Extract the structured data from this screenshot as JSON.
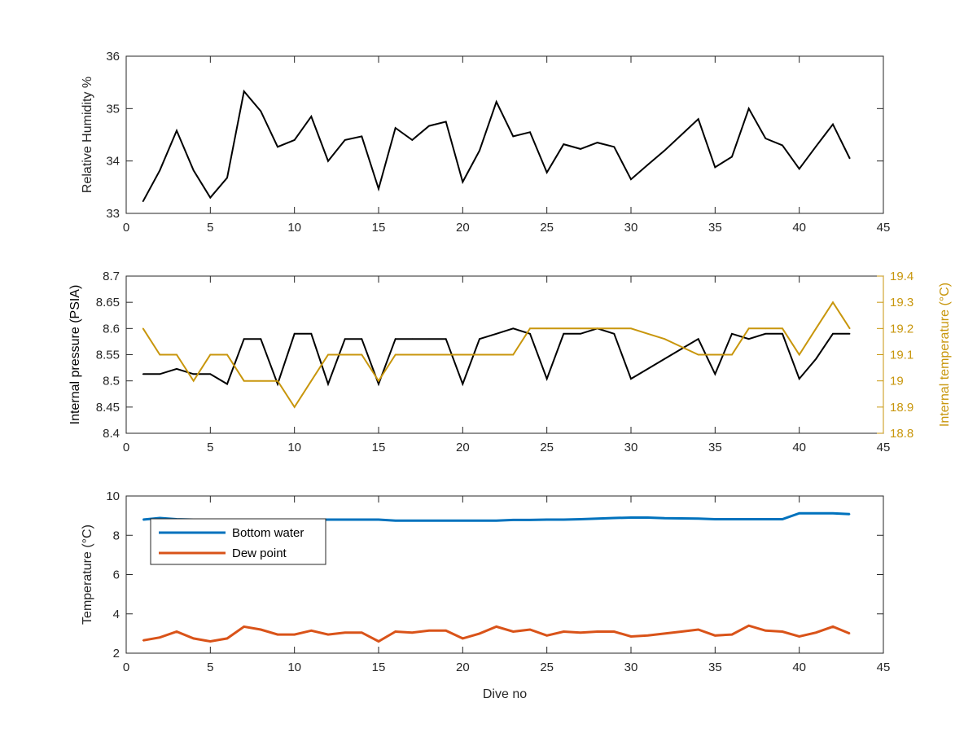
{
  "colors": {
    "axis": "#262626",
    "black_series": "#000000",
    "temperature_series": "#C8960C",
    "bottom_water": "#0072BD",
    "dew_point": "#D95319",
    "right_axis": "#C8960C"
  },
  "chart_data": [
    {
      "type": "line",
      "title": "",
      "xlabel": "",
      "ylabel": "Relative Humidity %",
      "xlim": [
        0,
        45
      ],
      "ylim": [
        33,
        36
      ],
      "xticks": [
        0,
        5,
        10,
        15,
        20,
        25,
        30,
        35,
        40,
        45
      ],
      "yticks": [
        33,
        34,
        35,
        36
      ],
      "x": [
        1,
        2,
        3,
        4,
        5,
        6,
        7,
        8,
        9,
        10,
        11,
        12,
        13,
        14,
        15,
        16,
        17,
        18,
        19,
        20,
        21,
        22,
        23,
        24,
        25,
        26,
        27,
        28,
        29,
        30,
        31,
        32,
        33,
        34,
        35,
        36,
        37,
        38,
        39,
        40,
        41,
        42,
        43
      ],
      "series": [
        {
          "values": [
            33.23,
            33.82,
            34.58,
            33.82,
            33.3,
            33.68,
            35.33,
            34.95,
            34.27,
            34.4,
            34.85,
            34.0,
            34.4,
            34.47,
            33.47,
            34.63,
            34.4,
            34.67,
            34.75,
            33.6,
            34.2,
            35.13,
            34.47,
            34.55,
            33.78,
            34.32,
            34.23,
            34.35,
            34.27,
            33.65,
            33.93,
            34.2,
            34.5,
            34.8,
            33.88,
            34.08,
            35.0,
            34.43,
            34.3,
            33.85,
            34.28,
            34.7,
            34.05
          ]
        }
      ]
    },
    {
      "type": "line",
      "title": "",
      "xlabel": "",
      "ylabel": "Internal pressure (PSIA)",
      "ylabel_right": "Internal temperature (°C)",
      "xlim": [
        0,
        45
      ],
      "ylim": [
        8.4,
        8.7
      ],
      "ylim_right": [
        18.8,
        19.4
      ],
      "xticks": [
        0,
        5,
        10,
        15,
        20,
        25,
        30,
        35,
        40,
        45
      ],
      "yticks": [
        8.4,
        8.45,
        8.5,
        8.55,
        8.6,
        8.65,
        8.7
      ],
      "ytick_labels": [
        "8.4",
        "8.45",
        "8.5",
        "8.55",
        "8.6",
        "8.65",
        "8.7"
      ],
      "yticks_right": [
        18.8,
        18.9,
        19.0,
        19.1,
        19.2,
        19.3,
        19.4
      ],
      "ytick_labels_right": [
        "18.8",
        "18.9",
        "19",
        "19.1",
        "19.2",
        "19.3",
        "19.4"
      ],
      "x": [
        1,
        2,
        3,
        4,
        5,
        6,
        7,
        8,
        9,
        10,
        11,
        12,
        13,
        14,
        15,
        16,
        17,
        18,
        19,
        20,
        21,
        22,
        23,
        24,
        25,
        26,
        27,
        28,
        29,
        30,
        31,
        32,
        33,
        34,
        35,
        36,
        37,
        38,
        39,
        40,
        41,
        42,
        43
      ],
      "series": [
        {
          "axis": "left",
          "values": [
            8.513,
            8.513,
            8.523,
            8.513,
            8.513,
            8.494,
            8.58,
            8.58,
            8.494,
            8.59,
            8.59,
            8.494,
            8.58,
            8.58,
            8.494,
            8.58,
            8.58,
            8.58,
            8.58,
            8.494,
            8.58,
            8.59,
            8.6,
            8.59,
            8.504,
            8.59,
            8.59,
            8.6,
            8.59,
            8.504,
            8.523,
            8.542,
            8.561,
            8.58,
            8.513,
            8.59,
            8.58,
            8.59,
            8.59,
            8.504,
            8.542,
            8.59,
            8.59
          ]
        },
        {
          "axis": "right",
          "values": [
            19.2,
            19.1,
            19.1,
            19.0,
            19.1,
            19.1,
            19.0,
            19.0,
            19.0,
            18.9,
            19.0,
            19.1,
            19.1,
            19.1,
            19.0,
            19.1,
            19.1,
            19.1,
            19.1,
            19.1,
            19.1,
            19.1,
            19.1,
            19.2,
            19.2,
            19.2,
            19.2,
            19.2,
            19.2,
            19.2,
            19.18,
            19.16,
            19.13,
            19.1,
            19.1,
            19.1,
            19.2,
            19.2,
            19.2,
            19.1,
            19.2,
            19.3,
            19.2
          ]
        }
      ]
    },
    {
      "type": "line",
      "title": "",
      "xlabel": "Dive no",
      "ylabel": "Temperature (°C)",
      "xlim": [
        0,
        45
      ],
      "ylim": [
        2,
        10
      ],
      "xticks": [
        0,
        5,
        10,
        15,
        20,
        25,
        30,
        35,
        40,
        45
      ],
      "yticks": [
        2,
        4,
        6,
        8,
        10
      ],
      "legend_position": "top-left",
      "x": [
        1,
        2,
        3,
        4,
        5,
        6,
        7,
        8,
        9,
        10,
        11,
        12,
        13,
        14,
        15,
        16,
        17,
        18,
        19,
        20,
        21,
        22,
        23,
        24,
        25,
        26,
        27,
        28,
        29,
        30,
        31,
        32,
        33,
        34,
        35,
        36,
        37,
        38,
        39,
        40,
        41,
        42,
        43
      ],
      "series": [
        {
          "name": "Bottom water",
          "values": [
            8.8,
            8.88,
            8.82,
            8.8,
            8.8,
            8.8,
            8.8,
            8.8,
            8.8,
            8.8,
            8.8,
            8.8,
            8.8,
            8.8,
            8.8,
            8.75,
            8.75,
            8.75,
            8.75,
            8.75,
            8.75,
            8.75,
            8.78,
            8.78,
            8.8,
            8.8,
            8.82,
            8.85,
            8.88,
            8.9,
            8.9,
            8.87,
            8.86,
            8.85,
            8.82,
            8.82,
            8.82,
            8.82,
            8.82,
            9.12,
            9.12,
            9.12,
            9.08
          ]
        },
        {
          "name": "Dew point",
          "values": [
            2.65,
            2.8,
            3.1,
            2.75,
            2.6,
            2.75,
            3.35,
            3.2,
            2.95,
            2.95,
            3.15,
            2.95,
            3.05,
            3.05,
            2.6,
            3.1,
            3.05,
            3.15,
            3.15,
            2.75,
            3.0,
            3.35,
            3.1,
            3.2,
            2.9,
            3.1,
            3.05,
            3.1,
            3.1,
            2.85,
            2.9,
            3.0,
            3.1,
            3.2,
            2.9,
            2.95,
            3.4,
            3.15,
            3.1,
            2.85,
            3.05,
            3.35,
            3.0
          ]
        }
      ]
    }
  ]
}
